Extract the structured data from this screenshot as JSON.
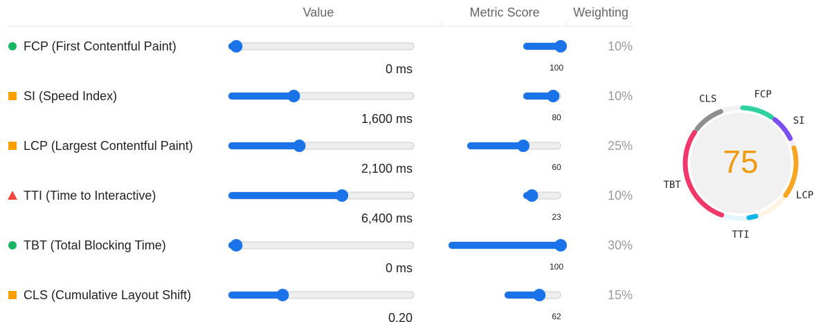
{
  "header": {
    "value": "Value",
    "metric_score": "Metric Score",
    "weighting": "Weighting"
  },
  "rows": [
    {
      "label": "FCP (First Contentful Paint)",
      "abbr": "FCP",
      "color": "#2fd1a0",
      "value": {
        "value": 0,
        "label": "0 ms"
      },
      "score": 100,
      "weight": {
        "value": 10,
        "label": "10%"
      }
    },
    {
      "label": "SI (Speed Index)",
      "abbr": "SI",
      "color": "#7b4ff0",
      "value": {
        "value": 1600,
        "label": "1,600 ms"
      },
      "score": 80,
      "weight": {
        "value": 10,
        "label": "10%"
      }
    },
    {
      "label": "LCP (Largest Contentful Paint)",
      "abbr": "LCP",
      "color": "#f5a623",
      "value": {
        "value": 2100,
        "label": "2,100 ms"
      },
      "score": 60,
      "weight": {
        "value": 25,
        "label": "25%"
      }
    },
    {
      "label": "TTI (Time to Interactive)",
      "abbr": "TTI",
      "color": "#0fb4e8",
      "value": {
        "value": 6400,
        "label": "6,400 ms"
      },
      "score": 23,
      "weight": {
        "value": 10,
        "label": "10%"
      }
    },
    {
      "label": "TBT (Total Blocking Time)",
      "abbr": "TBT",
      "color": "#f0386b",
      "value": {
        "value": 0,
        "label": "0 ms"
      },
      "score": 100,
      "weight": {
        "value": 30,
        "label": "30%"
      }
    },
    {
      "label": "CLS (Cumulative Layout Shift)",
      "abbr": "CLS",
      "color": "#8f8f8f",
      "value": {
        "value": 0.2,
        "label": "0.20"
      },
      "score": 62,
      "weight": {
        "value": 15,
        "label": "15%"
      }
    }
  ],
  "gauge": {
    "score": 75
  }
}
